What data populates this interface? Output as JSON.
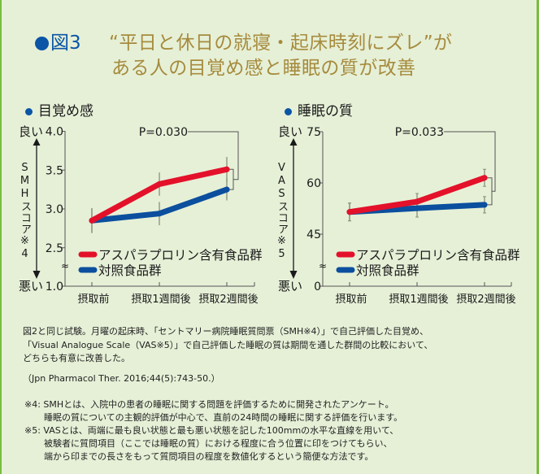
{
  "header": {
    "figure_label": "図3",
    "title_lines": [
      "“平日と休日の就寝・起床時刻にズレ”が",
      "ある人の目覚め感と睡眠の質が改善"
    ]
  },
  "colors": {
    "accent_blue": "#0b55a6",
    "title_gold": "#a68b3d",
    "background": "#e6f0d7",
    "border_green": "#77bd3f",
    "series_red": "#e4112a",
    "series_blue": "#0b4f9e",
    "error_bar": "#8a8f7a"
  },
  "chart_data": [
    {
      "type": "line",
      "title": "目覚め感",
      "ylabel": "SMHスコア※4",
      "y_top_label": "良い",
      "y_bottom_label": "悪い",
      "xlabel": "",
      "categories": [
        "摂取前",
        "摂取1週間後",
        "摂取2週間後"
      ],
      "yticks": [
        4.0,
        3.5,
        3.0,
        2.5,
        1.0
      ],
      "ytick_labels": [
        "4.0",
        "3.5",
        "3.0",
        "2.5",
        "1.0"
      ],
      "ylim": [
        1.0,
        4.0
      ],
      "axis_break": [
        1.0,
        2.5
      ],
      "axis_break_symbol": "≈",
      "grid": false,
      "legend": "bottom-left",
      "series": [
        {
          "name": "アスパラプロリン含有食品群",
          "values": [
            2.85,
            3.32,
            3.51
          ],
          "error": [
            0.16,
            0.15,
            0.16
          ],
          "color": "#e4112a"
        },
        {
          "name": "対照食品群",
          "values": [
            2.85,
            2.94,
            3.25
          ],
          "error": [
            0.16,
            0.15,
            0.14
          ],
          "color": "#0b4f9e"
        }
      ],
      "annotation": {
        "text": "P=0.030",
        "compare_category": "摂取2週間後"
      }
    },
    {
      "type": "line",
      "title": "睡眠の質",
      "ylabel": "VASスコア※5",
      "y_top_label": "良い",
      "y_bottom_label": "悪い",
      "xlabel": "",
      "categories": [
        "摂取前",
        "摂取1週間後",
        "摂取2週間後"
      ],
      "yticks": [
        75,
        60,
        45,
        0
      ],
      "ytick_labels": [
        "75",
        "60",
        "45",
        "0"
      ],
      "ylim": [
        0,
        75
      ],
      "axis_break": [
        0,
        45
      ],
      "axis_break_symbol": "≈",
      "grid": false,
      "legend": "bottom-left",
      "series": [
        {
          "name": "アスパラプロリン含有食品群",
          "values": [
            51.5,
            54.5,
            61.5
          ],
          "error": [
            2.6,
            2.4,
            2.5
          ],
          "color": "#e4112a"
        },
        {
          "name": "対照食品群",
          "values": [
            51.5,
            52.6,
            53.6
          ],
          "error": [
            2.6,
            2.6,
            2.4
          ],
          "color": "#0b4f9e"
        }
      ],
      "annotation": {
        "text": "P=0.033",
        "compare_category": "摂取2週間後"
      }
    }
  ],
  "description": [
    "図2と同じ試験。月曜の起床時、「セントマリー病院睡眠質問票（SMH※4）」で自己評価した目覚め、",
    "「Visual Analogue Scale（VAS※5）」で自己評価した睡眠の質は期間を通した群間の比較において、",
    "どちらも有意に改善した。"
  ],
  "reference": "（Jpn Pharmacol Ther. 2016;44(5):743-50.）",
  "footnotes": [
    {
      "mark": "※4: ",
      "lines": [
        "SMHとは、入院中の患者の睡眠に関する問題を評価するために開発されたアンケート。",
        "睡眠の質についての主観的評価が中心で、直前の24時間の睡眠に関する評価を行います。"
      ]
    },
    {
      "mark": "※5: ",
      "lines": [
        "VASとは、両端に最も良い状態と最も悪い状態を記した100mmの水平な直線を用いて、",
        "被験者に質問項目（ここでは睡眠の質）における程度に合う位置に印をつけてもらい、",
        "端から印までの長さをもって質問項目の程度を数値化するという簡便な方法です。"
      ]
    }
  ]
}
